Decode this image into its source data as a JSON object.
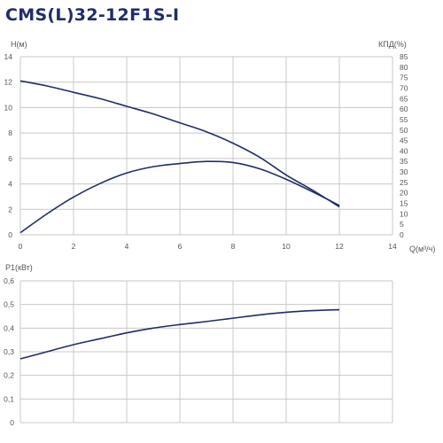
{
  "title": "CMS(L)32-12F1S-I",
  "colors": {
    "curve": "#1f2d6b",
    "grid": "#c8c8c8",
    "text": "#555555",
    "title": "#1f2d6b"
  },
  "chart_data": [
    {
      "type": "line",
      "name": "head-efficiency",
      "xlabel": "Q(м³/ч)",
      "ylabel_left": "H(м)",
      "ylabel_right": "КПД(%)",
      "xlim": [
        0,
        14
      ],
      "ylim_left": [
        0,
        14
      ],
      "ylim_right": [
        0,
        85
      ],
      "x_ticks": [
        "0",
        "2",
        "4",
        "6",
        "8",
        "10",
        "12",
        "14"
      ],
      "y_ticks_left": [
        "0",
        "2",
        "4",
        "6",
        "8",
        "10",
        "12",
        "14"
      ],
      "y_ticks_right": [
        "0",
        "5",
        "10",
        "15",
        "20",
        "25",
        "30",
        "35",
        "40",
        "45",
        "50",
        "55",
        "60",
        "65",
        "70",
        "75",
        "80",
        "85"
      ],
      "grid": true,
      "series": [
        {
          "axis": "left",
          "x": [
            0,
            1,
            2,
            3,
            4,
            5,
            6,
            7,
            8,
            9,
            10,
            11,
            12
          ],
          "y": [
            12.1,
            11.7,
            11.2,
            10.7,
            10.1,
            9.5,
            8.8,
            8.1,
            7.2,
            6.1,
            4.7,
            3.5,
            2.2
          ]
        },
        {
          "axis": "right",
          "x": [
            0,
            1,
            2,
            3,
            4,
            5,
            6,
            7,
            8,
            9,
            10,
            11,
            12
          ],
          "y": [
            1,
            10,
            18,
            24.5,
            29.5,
            32.5,
            34,
            35,
            34.5,
            31.5,
            26.5,
            20.5,
            14
          ]
        }
      ]
    },
    {
      "type": "line",
      "name": "power",
      "ylabel": "P1(кВт)",
      "xlim": [
        0,
        14
      ],
      "ylim": [
        0,
        0.6
      ],
      "y_ticks": [
        "0",
        "0,1",
        "0,2",
        "0,3",
        "0,4",
        "0,5",
        "0,6"
      ],
      "grid": true,
      "series": [
        {
          "x": [
            0,
            1,
            2,
            3,
            4,
            5,
            6,
            7,
            8,
            9,
            10,
            11,
            12
          ],
          "y": [
            0.27,
            0.3,
            0.33,
            0.355,
            0.38,
            0.4,
            0.415,
            0.428,
            0.442,
            0.456,
            0.467,
            0.474,
            0.478
          ]
        }
      ]
    }
  ]
}
